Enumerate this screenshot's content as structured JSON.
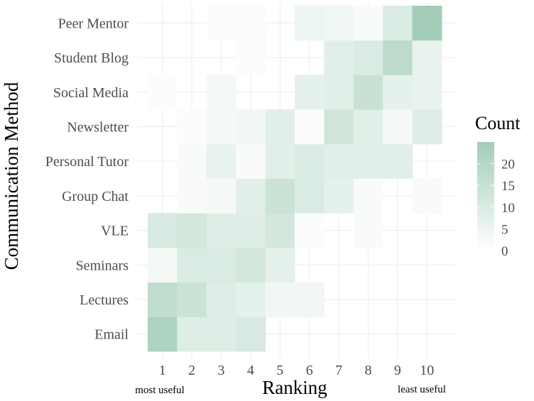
{
  "chart_data": {
    "type": "heatmap",
    "title": "",
    "xlabel": "Ranking",
    "ylabel": "Communication Method",
    "x_categories": [
      "1",
      "2",
      "3",
      "4",
      "5",
      "6",
      "7",
      "8",
      "9",
      "10"
    ],
    "y_categories": [
      "Email",
      "Lectures",
      "Seminars",
      "VLE",
      "Group Chat",
      "Personal Tutor",
      "Newsletter",
      "Social Media",
      "Student Blog",
      "Peer Mentor"
    ],
    "values": [
      [
        22,
        9,
        9,
        11,
        0,
        0,
        0,
        0,
        0,
        0
      ],
      [
        17,
        14,
        9,
        7,
        4,
        4,
        0,
        0,
        0,
        0
      ],
      [
        3,
        10,
        10,
        12,
        7,
        0,
        0,
        0,
        0,
        0
      ],
      [
        11,
        12,
        9,
        9,
        12,
        1,
        0,
        2,
        0,
        0
      ],
      [
        0,
        2,
        3,
        8,
        14,
        10,
        7,
        2,
        0,
        2
      ],
      [
        0,
        2,
        6,
        2,
        8,
        10,
        8,
        8,
        8,
        0
      ],
      [
        0,
        1,
        3,
        4,
        8,
        1,
        13,
        8,
        3,
        9
      ],
      [
        1,
        0,
        3,
        0,
        0,
        7,
        8,
        15,
        7,
        6
      ],
      [
        0,
        0,
        0,
        1,
        0,
        0,
        8,
        10,
        18,
        6
      ],
      [
        0,
        0,
        1,
        1,
        0,
        5,
        4,
        2,
        10,
        25
      ]
    ],
    "color_scale": {
      "low": "#ffffff",
      "high": "#a3cdb8"
    },
    "grid": true,
    "legend": {
      "title": "Count",
      "placement": "right",
      "ticks": [
        0,
        5,
        10,
        15,
        20
      ],
      "range": [
        0,
        25
      ]
    },
    "annotations": {
      "left": "most useful",
      "right": "least useful"
    }
  },
  "colors": {
    "grid": "#ebebeb",
    "tick_text": "#4d4d4d",
    "title_text": "#000000",
    "cell_low": "#ffffff",
    "cell_high": "#a3cdb8"
  }
}
